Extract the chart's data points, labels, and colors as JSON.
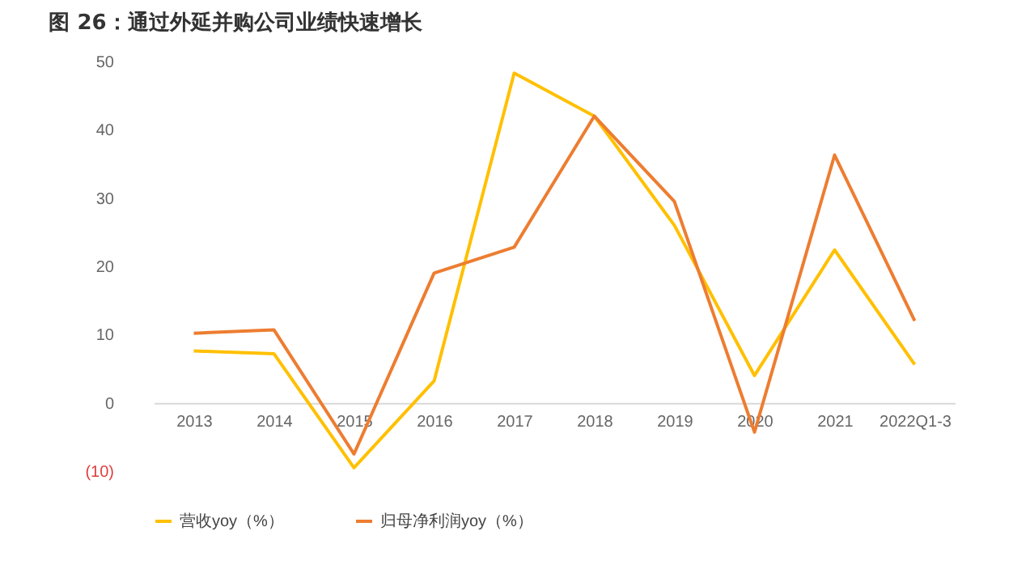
{
  "chart_data": {
    "type": "line",
    "title": "图 26：通过外延并购公司业绩快速增长",
    "categories": [
      "2013",
      "2014",
      "2015",
      "2016",
      "2017",
      "2018",
      "2019",
      "2020",
      "2021",
      "2022Q1-3"
    ],
    "series": [
      {
        "name": "营收yoy（%）",
        "color": "#ffc000",
        "values": [
          7.6,
          7.2,
          -9.5,
          3.2,
          48.3,
          42,
          26,
          4,
          22.4,
          5.6
        ]
      },
      {
        "name": "归母净利润yoy（%）",
        "color": "#ed7d31",
        "values": [
          10.2,
          10.7,
          -7.5,
          19,
          22.8,
          42,
          29.5,
          -4.3,
          36.3,
          12
        ]
      }
    ],
    "ylim": [
      -10,
      50
    ],
    "yticks": [
      {
        "value": -10,
        "label": "(10)"
      },
      0,
      10,
      20,
      30,
      40,
      50
    ],
    "grid": false,
    "legend": "bottom",
    "marker": "none",
    "line_style": "solid"
  }
}
